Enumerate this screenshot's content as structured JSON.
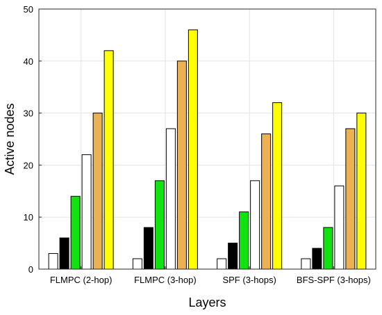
{
  "chart_data": {
    "type": "bar",
    "title": "",
    "xlabel": "Layers",
    "ylabel": "Active nodes",
    "ylim": [
      0,
      50
    ],
    "yticks": [
      0,
      10,
      20,
      30,
      40,
      50
    ],
    "grid": true,
    "legend": "none",
    "categories": [
      "FLMPC (2-hop)",
      "FLMPC (3-hop)",
      "SPF (3-hops)",
      "BFS-SPF (3-hops)"
    ],
    "series": [
      {
        "color": "#ffffff",
        "values": [
          3,
          2,
          2,
          2
        ]
      },
      {
        "color": "#000000",
        "values": [
          6,
          8,
          5,
          4
        ]
      },
      {
        "color": "#11e311",
        "values": [
          14,
          17,
          11,
          8
        ]
      },
      {
        "color": "#ffffff",
        "values": [
          22,
          27,
          17,
          16
        ]
      },
      {
        "color": "#ebb152",
        "values": [
          30,
          40,
          26,
          27
        ]
      },
      {
        "color": "#ffff00",
        "values": [
          42,
          46,
          32,
          30
        ]
      }
    ]
  }
}
